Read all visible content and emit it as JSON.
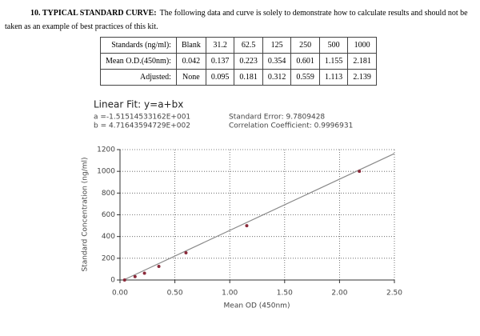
{
  "heading": {
    "label": "10. TYPICAL STANDARD CURVE:",
    "text": "The following data and curve is solely to demonstrate how to calculate results and should not be taken as an example of best practices of this kit."
  },
  "table": {
    "rows": [
      [
        "Standards (ng/ml):",
        "Blank",
        31.2,
        62.5,
        125,
        250,
        500,
        1000
      ],
      [
        "Mean O.D.(450nm):",
        0.042,
        0.137,
        0.223,
        0.354,
        0.601,
        1.155,
        2.181
      ],
      [
        "Adjusted:",
        "None",
        0.095,
        0.181,
        0.312,
        0.559,
        1.113,
        2.139
      ]
    ]
  },
  "chart_data": {
    "type": "scatter",
    "title": "Linear Fit: y=a+bx",
    "fit_a": "a =-1.51514533162E+001",
    "fit_b": "b = 4.71643594729E+002",
    "standard_error": "Standard Error: 9.7809428",
    "correlation": "Correlation Coefficient: 0.9996931",
    "x_label": "Mean OD (450nm)",
    "y_label": "Standard Concentration (ng/ml)",
    "x": [
      0.042,
      0.137,
      0.223,
      0.354,
      0.601,
      1.155,
      2.181
    ],
    "values": [
      0,
      31.2,
      62.5,
      125,
      250,
      500,
      1000
    ],
    "color": "#8b2a3a",
    "fit_line": {
      "x": [
        0.042,
        2.5
      ],
      "values": [
        4.65,
        1163.9
      ],
      "color": "#8a8a8a"
    },
    "xlim": [
      0,
      2.5
    ],
    "xticks": [
      {
        "value": 0,
        "label": "0.00"
      },
      {
        "value": 0.5,
        "label": "0.50"
      },
      {
        "value": 1,
        "label": "1.00"
      },
      {
        "value": 1.5,
        "label": "1.50"
      },
      {
        "value": 2,
        "label": "2.00"
      },
      {
        "value": 2.5,
        "label": "2.50"
      }
    ],
    "ylim": [
      0,
      1200
    ],
    "yticks": [
      0,
      200,
      400,
      600,
      800,
      1000,
      1200
    ],
    "grid": true
  }
}
